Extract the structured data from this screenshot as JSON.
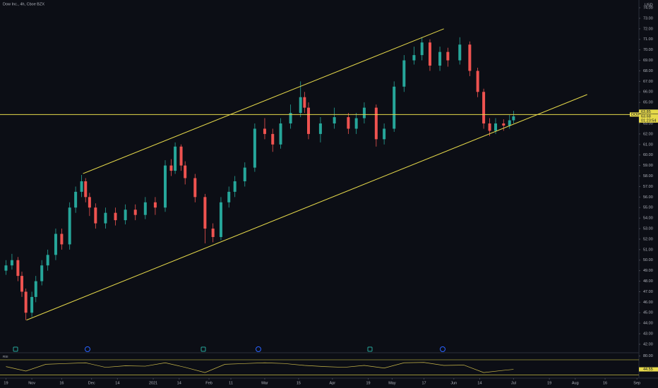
{
  "chart_data": {
    "type": "candlestick",
    "title": "Dow Inc., 4h, Cboe BZX",
    "symbol": "DOW",
    "currency": "USD",
    "countdown": "01:23:54",
    "up_color": "#26a69a",
    "down_color": "#ef5350",
    "line_color": "#e6d94a",
    "x": [
      0,
      3,
      6,
      8,
      10,
      13,
      15,
      18,
      21,
      25,
      28,
      32,
      35,
      38,
      40,
      42,
      45,
      50,
      55,
      60,
      65,
      70,
      75,
      80,
      83,
      85,
      88,
      90,
      95,
      100,
      104,
      108,
      112,
      115,
      120,
      125,
      130,
      134,
      138,
      143,
      148,
      150,
      152,
      158,
      165,
      172,
      176,
      180,
      186,
      190,
      195,
      200,
      205,
      209,
      213,
      218,
      222,
      228,
      233,
      237,
      240,
      243,
      246,
      250,
      253,
      255
    ],
    "open": [
      49,
      49.5,
      50,
      48.5,
      47,
      45,
      46.5,
      48,
      49.5,
      50.5,
      52.5,
      51.5,
      55,
      56.5,
      57.5,
      56,
      55,
      53.5,
      54.5,
      53.8,
      54.8,
      54.3,
      55.5,
      55,
      59,
      58.5,
      60.8,
      59,
      57.8,
      56,
      53,
      52.2,
      55.5,
      56.5,
      57.5,
      58.8,
      62.5,
      62,
      61,
      63,
      64,
      65.5,
      64.5,
      62,
      63,
      63.6,
      62.5,
      63.5,
      64.5,
      61.5,
      62.5,
      66.5,
      69,
      69.5,
      70.7,
      68.5,
      69.8,
      69,
      70.5,
      68,
      66,
      63,
      62.3,
      63,
      62.8,
      63.3
    ],
    "high": [
      50,
      50.6,
      50.3,
      48.9,
      47.3,
      47,
      48.5,
      50,
      51,
      53,
      53,
      55.5,
      57,
      58.1,
      57.8,
      56.4,
      55.4,
      55,
      55,
      55.3,
      55.3,
      56,
      56,
      59.5,
      59.6,
      61.2,
      61,
      59.4,
      58.2,
      56.3,
      53.5,
      56,
      57,
      58,
      59.3,
      63,
      63.5,
      62.5,
      63.5,
      64.8,
      67,
      66,
      65,
      63.6,
      64.5,
      64,
      64,
      65,
      64.8,
      63,
      67,
      69.5,
      70.3,
      71.2,
      71,
      70.3,
      70.2,
      71.2,
      70.8,
      68.3,
      66.3,
      63.5,
      63.5,
      63.4,
      63.8,
      64.2
    ],
    "low": [
      48.6,
      49.1,
      48,
      46.5,
      44.3,
      44.6,
      46,
      47.6,
      49,
      50,
      51,
      51,
      54.5,
      56,
      55.5,
      54.2,
      53,
      53,
      53.3,
      53.4,
      53.8,
      53.9,
      54.3,
      54.6,
      58,
      58.2,
      58.5,
      57.2,
      55.5,
      51.6,
      51.7,
      51.9,
      55,
      56,
      57,
      58.4,
      61.5,
      60.3,
      60.6,
      62.5,
      63.6,
      64,
      61.5,
      61.2,
      62.5,
      62,
      62,
      63,
      60.8,
      61,
      62.2,
      66,
      68.6,
      69,
      68,
      68,
      68.4,
      68.6,
      67.5,
      65.5,
      62.5,
      61.8,
      62,
      62.3,
      62.5,
      63
    ],
    "close": [
      49.5,
      50,
      48.5,
      47,
      45,
      46.5,
      48,
      49.5,
      50.5,
      52.5,
      51.5,
      55,
      56.5,
      57.5,
      56,
      55,
      53.5,
      54.5,
      53.8,
      54.8,
      54.3,
      55.5,
      55,
      59,
      58.5,
      60.8,
      59,
      57.8,
      56,
      53,
      52.2,
      55.5,
      56.5,
      57.5,
      58.8,
      62.5,
      62,
      61,
      63,
      64,
      65.5,
      64.5,
      62,
      63,
      63.6,
      62.5,
      63.5,
      64.5,
      61.5,
      62.5,
      66.5,
      69,
      69.5,
      70.7,
      68.5,
      69.8,
      69,
      70.5,
      68,
      66,
      63,
      62.3,
      63,
      62.8,
      63.3,
      63.68
    ],
    "xlim": [
      -3,
      318
    ],
    "ylim": [
      41.33,
      74.74
    ],
    "xticks": [
      {
        "value": 0,
        "label": "19"
      },
      {
        "value": 13,
        "label": "Nov"
      },
      {
        "value": 28,
        "label": "16"
      },
      {
        "value": 43,
        "label": "Dec"
      },
      {
        "value": 56,
        "label": "14"
      },
      {
        "value": 74,
        "label": "2021"
      },
      {
        "value": 87,
        "label": "14"
      },
      {
        "value": 102,
        "label": "Feb"
      },
      {
        "value": 113,
        "label": "11"
      },
      {
        "value": 130,
        "label": "Mar"
      },
      {
        "value": 147,
        "label": "15"
      },
      {
        "value": 164,
        "label": "Apr"
      },
      {
        "value": 182,
        "label": "19"
      },
      {
        "value": 194,
        "label": "May"
      },
      {
        "value": 210,
        "label": "17"
      },
      {
        "value": 225,
        "label": "Jun"
      },
      {
        "value": 238,
        "label": "14"
      },
      {
        "value": 255,
        "label": "Jul"
      },
      {
        "value": 273,
        "label": "19"
      },
      {
        "value": 286,
        "label": "Aug"
      },
      {
        "value": 301,
        "label": "16"
      },
      {
        "value": 317,
        "label": "Sep"
      }
    ],
    "yticks": [
      {
        "value": 42,
        "label": "42.00"
      },
      {
        "value": 43,
        "label": "43.00"
      },
      {
        "value": 44,
        "label": "44.00"
      },
      {
        "value": 45,
        "label": "45.00"
      },
      {
        "value": 46,
        "label": "46.00"
      },
      {
        "value": 47,
        "label": "47.00"
      },
      {
        "value": 48,
        "label": "48.00"
      },
      {
        "value": 49,
        "label": "49.00"
      },
      {
        "value": 50,
        "label": "50.00"
      },
      {
        "value": 51,
        "label": "51.00"
      },
      {
        "value": 52,
        "label": "52.00"
      },
      {
        "value": 53,
        "label": "53.00"
      },
      {
        "value": 54,
        "label": "54.00"
      },
      {
        "value": 55,
        "label": "55.00"
      },
      {
        "value": 56,
        "label": "56.00"
      },
      {
        "value": 57,
        "label": "57.00"
      },
      {
        "value": 58,
        "label": "58.00"
      },
      {
        "value": 59,
        "label": "59.00"
      },
      {
        "value": 60,
        "label": "60.00"
      },
      {
        "value": 61,
        "label": "61.00"
      },
      {
        "value": 62,
        "label": "62.00"
      },
      {
        "value": 63,
        "label": "63.00"
      },
      {
        "value": 64,
        "label": "64.00"
      },
      {
        "value": 65,
        "label": "65.00"
      },
      {
        "value": 66,
        "label": "66.00"
      },
      {
        "value": 67,
        "label": "67.00"
      },
      {
        "value": 68,
        "label": "68.00"
      },
      {
        "value": 69,
        "label": "69.00"
      },
      {
        "value": 70,
        "label": "70.00"
      },
      {
        "value": 71,
        "label": "71.00"
      },
      {
        "value": 72,
        "label": "72.00"
      },
      {
        "value": 73,
        "label": "73.00"
      },
      {
        "value": 74,
        "label": "74.00"
      }
    ],
    "hline": 63.85,
    "trendlines": [
      {
        "points": [
          [
            38.7,
            58.23
          ],
          [
            220,
            72.0
          ]
        ]
      },
      {
        "points": [
          [
            10.3,
            44.3
          ],
          [
            292,
            65.75
          ]
        ]
      }
    ],
    "indicator": {
      "name": "RSI",
      "x": [
        0,
        10,
        20,
        30,
        40,
        50,
        60,
        70,
        80,
        90,
        100,
        110,
        120,
        130,
        140,
        150,
        160,
        170,
        180,
        190,
        200,
        210,
        220,
        230,
        240,
        250,
        255
      ],
      "values": [
        52,
        40,
        58,
        60,
        62,
        50,
        54,
        53,
        62,
        50,
        36,
        58,
        60,
        62,
        60,
        55,
        52,
        50,
        55,
        48,
        62,
        63,
        55,
        56,
        36,
        42,
        44.55
      ],
      "ylim": [
        25,
        85
      ],
      "yticks": [
        {
          "value": 80,
          "label": "80.00"
        }
      ],
      "bands": [
        70,
        30
      ]
    }
  }
}
